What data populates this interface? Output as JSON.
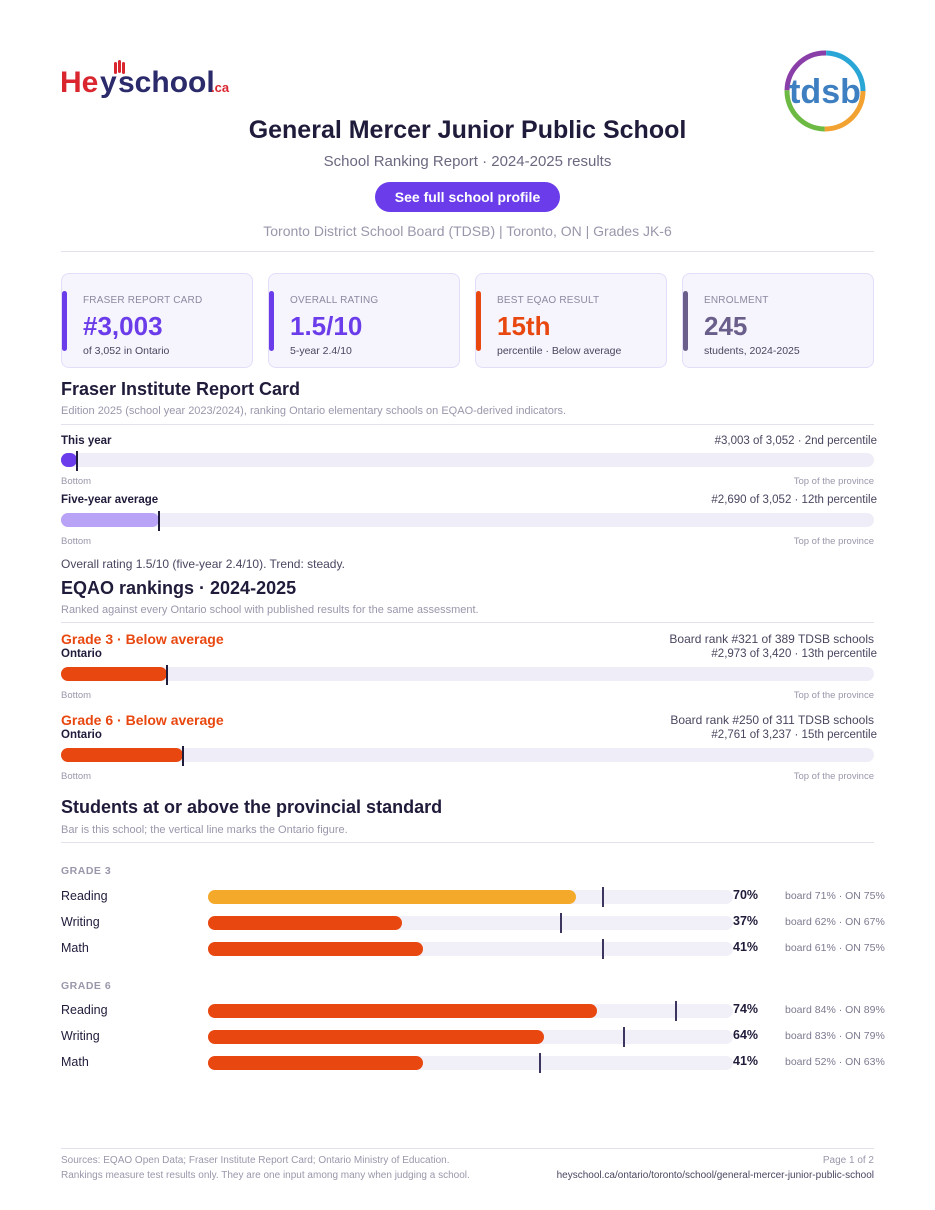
{
  "brand": {
    "heyschool": "Heyschool.ca",
    "tdsb": "tdsb",
    "colors": {
      "accent": "#6b3ce9",
      "orange": "#e8470f",
      "gold": "#f4a92a",
      "slate": "#6a5f8a"
    }
  },
  "header": {
    "title": "General Mercer Junior Public School",
    "subtitle": "School Ranking Report  ·  2024-2025 results",
    "profile_button": "See full school profile",
    "meta": "Toronto District School Board (TDSB)  |  Toronto, ON  |  Grades JK-6"
  },
  "cards": [
    {
      "label": "FRASER REPORT CARD",
      "value": "#3,003",
      "sub": "of 3,052 in Ontario",
      "color": "#6b3ce9"
    },
    {
      "label": "OVERALL RATING",
      "value": "1.5/10",
      "sub": "5-year 2.4/10",
      "color": "#6b3ce9"
    },
    {
      "label": "BEST EQAO RESULT",
      "value": "15th",
      "sub": "percentile  ·  Below average",
      "color": "#e8470f"
    },
    {
      "label": "ENROLMENT",
      "value": "245",
      "sub": "students, 2024-2025",
      "color": "#6a5f8a"
    }
  ],
  "fraser": {
    "title": "Fraser Institute Report Card",
    "note": "Edition 2025 (school year 2023/2024), ranking Ontario elementary schools on EQAO-derived indicators.",
    "this_year": {
      "label": "This year",
      "right": "#3,003 of 3,052  ·  2nd percentile",
      "fraction": 0.02
    },
    "five_year": {
      "label": "Five-year average",
      "right": "#2,690 of 3,052  ·  12th percentile",
      "fraction": 0.12
    },
    "bottom": "Bottom",
    "top": "Top of the province",
    "overall": "Overall rating 1.5/10 (five-year 2.4/10). Trend: steady."
  },
  "eqao": {
    "title": "EQAO rankings  ·  2024-2025",
    "note": "Ranked against every Ontario school with published results for the same assessment.",
    "grade3": {
      "title": "Grade 3  ·  Below average",
      "board": "Board rank #321 of 389 TDSB schools",
      "region": "Ontario",
      "province": "#2,973 of 3,420  ·  13th percentile",
      "fraction": 0.13
    },
    "grade6": {
      "title": "Grade 6  ·  Below average",
      "board": "Board rank #250 of 311 TDSB schools",
      "region": "Ontario",
      "province": "#2,761 of 3,237  ·  15th percentile",
      "fraction": 0.15
    },
    "bottom": "Bottom",
    "top": "Top of the province"
  },
  "students": {
    "title": "Students at or above the provincial standard",
    "note": "Bar is this school; the vertical line marks the Ontario figure.",
    "grade3_label": "GRADE 3",
    "grade6_label": "GRADE 6",
    "grade3": [
      {
        "subject": "Reading",
        "pct": "70%",
        "value": 70,
        "ontario": 75,
        "cmp": "board 71%  ·  ON 75%",
        "color": "#f4a92a"
      },
      {
        "subject": "Writing",
        "pct": "37%",
        "value": 37,
        "ontario": 67,
        "cmp": "board 62%  ·  ON 67%",
        "color": "#e8470f"
      },
      {
        "subject": "Math",
        "pct": "41%",
        "value": 41,
        "ontario": 75,
        "cmp": "board 61%  ·  ON 75%",
        "color": "#e8470f"
      }
    ],
    "grade6": [
      {
        "subject": "Reading",
        "pct": "74%",
        "value": 74,
        "ontario": 89,
        "cmp": "board 84%  ·  ON 89%",
        "color": "#e8470f"
      },
      {
        "subject": "Writing",
        "pct": "64%",
        "value": 64,
        "ontario": 79,
        "cmp": "board 83%  ·  ON 79%",
        "color": "#e8470f"
      },
      {
        "subject": "Math",
        "pct": "41%",
        "value": 41,
        "ontario": 63,
        "cmp": "board 52%  ·  ON 63%",
        "color": "#e8470f"
      }
    ]
  },
  "footer": {
    "sources": "Sources: EQAO Open Data; Fraser Institute Report Card; Ontario Ministry of Education.",
    "disclaimer": "Rankings measure test results only. They are one input among many when judging a school.",
    "page": "Page 1 of 2",
    "url": "heyschool.ca/ontario/toronto/school/general-mercer-junior-public-school"
  }
}
